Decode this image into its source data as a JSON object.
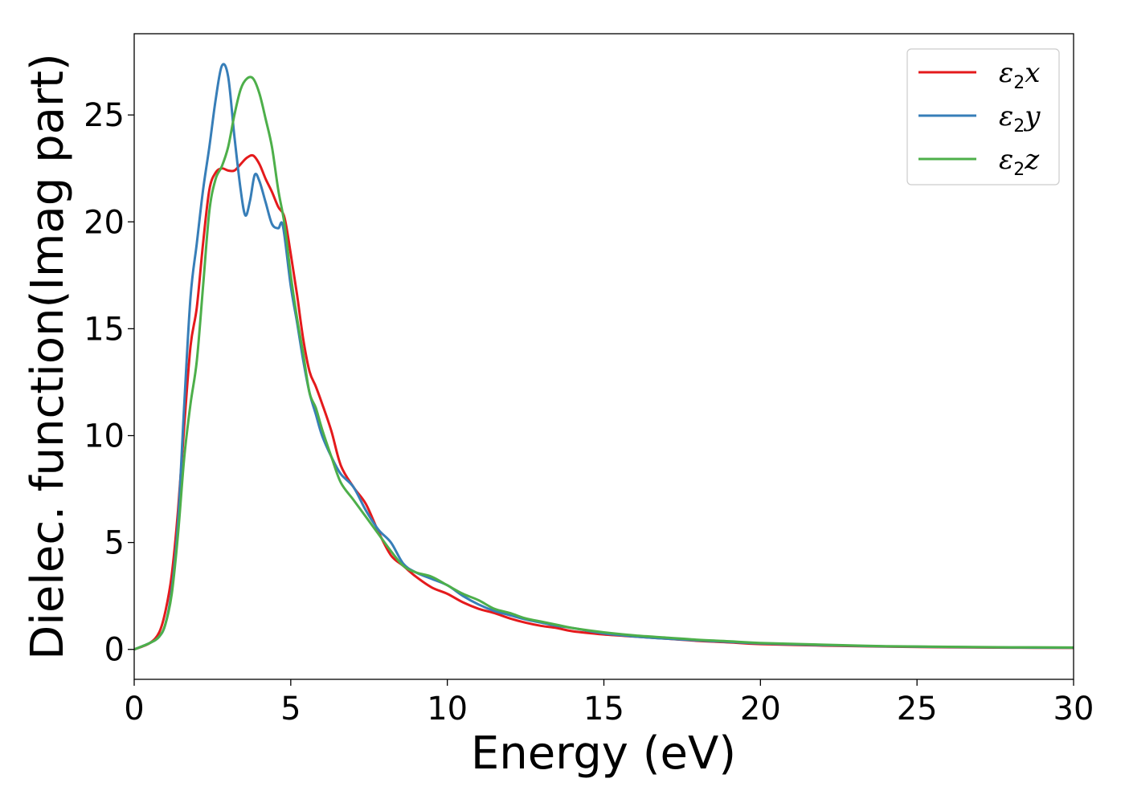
{
  "chart_data": {
    "type": "line",
    "xlabel": "Energy (eV)",
    "ylabel": "Dielec. function(Imag part)",
    "xlim": [
      0,
      30
    ],
    "ylim": [
      -1.4,
      28.8
    ],
    "xticks": [
      0,
      5,
      10,
      15,
      20,
      25,
      30
    ],
    "yticks": [
      0,
      5,
      10,
      15,
      20,
      25
    ],
    "grid": false,
    "legend_position": "top-right",
    "series": [
      {
        "name": "ε2x",
        "legend_main": "ε",
        "legend_sub": "2",
        "legend_tail": "x",
        "color": "#e41a1c",
        "x": [
          0,
          0.5,
          0.8,
          1.0,
          1.2,
          1.4,
          1.6,
          1.8,
          2.0,
          2.2,
          2.4,
          2.6,
          2.8,
          3.0,
          3.2,
          3.4,
          3.6,
          3.8,
          4.0,
          4.2,
          4.4,
          4.6,
          4.8,
          5.0,
          5.2,
          5.4,
          5.6,
          5.8,
          6.0,
          6.3,
          6.6,
          7.0,
          7.4,
          7.8,
          8.2,
          8.6,
          9.0,
          9.5,
          10.0,
          10.5,
          11.0,
          11.5,
          12.0,
          12.5,
          13.0,
          13.5,
          14.0,
          15.0,
          16.0,
          17.0,
          18.0,
          19.0,
          20.0,
          22.0,
          24.0,
          26.0,
          28.0,
          30.0
        ],
        "values": [
          0,
          0.3,
          0.8,
          1.8,
          3.5,
          6.5,
          10.5,
          14.2,
          16.0,
          19.0,
          21.5,
          22.3,
          22.5,
          22.4,
          22.4,
          22.7,
          23.0,
          23.1,
          22.7,
          22.0,
          21.4,
          20.7,
          20.2,
          18.5,
          16.6,
          14.5,
          13.0,
          12.3,
          11.5,
          10.2,
          8.6,
          7.6,
          6.8,
          5.5,
          4.4,
          3.9,
          3.4,
          2.9,
          2.6,
          2.2,
          1.9,
          1.7,
          1.45,
          1.25,
          1.1,
          1.0,
          0.85,
          0.7,
          0.6,
          0.5,
          0.4,
          0.33,
          0.25,
          0.18,
          0.13,
          0.1,
          0.08,
          0.07
        ]
      },
      {
        "name": "ε2y",
        "legend_main": "ε",
        "legend_sub": "2",
        "legend_tail": "y",
        "color": "#377eb8",
        "x": [
          0,
          0.5,
          0.8,
          1.0,
          1.2,
          1.4,
          1.6,
          1.8,
          2.0,
          2.2,
          2.4,
          2.6,
          2.8,
          3.0,
          3.2,
          3.4,
          3.55,
          3.7,
          3.85,
          4.0,
          4.2,
          4.4,
          4.6,
          4.75,
          5.0,
          5.2,
          5.4,
          5.6,
          5.8,
          6.0,
          6.3,
          6.6,
          7.0,
          7.4,
          7.8,
          8.2,
          8.6,
          9.0,
          9.5,
          10.0,
          10.5,
          11.0,
          11.5,
          12.0,
          12.5,
          13.0,
          13.5,
          14.0,
          15.0,
          16.0,
          17.0,
          18.0,
          19.0,
          20.0,
          22.0,
          24.0,
          26.0,
          28.0,
          30.0
        ],
        "values": [
          0,
          0.3,
          0.6,
          1.2,
          2.8,
          6.0,
          11.5,
          16.5,
          19.0,
          21.5,
          23.5,
          25.7,
          27.3,
          26.8,
          24.0,
          21.5,
          20.3,
          21.0,
          22.2,
          21.9,
          20.9,
          19.9,
          19.7,
          19.8,
          17.0,
          15.3,
          13.5,
          12.0,
          11.0,
          10.0,
          9.0,
          8.2,
          7.6,
          6.5,
          5.6,
          5.0,
          4.0,
          3.6,
          3.3,
          3.0,
          2.5,
          2.1,
          1.8,
          1.6,
          1.4,
          1.25,
          1.1,
          1.0,
          0.75,
          0.6,
          0.5,
          0.42,
          0.35,
          0.28,
          0.2,
          0.14,
          0.11,
          0.09,
          0.08
        ]
      },
      {
        "name": "ε2z",
        "legend_main": "ε",
        "legend_sub": "2",
        "legend_tail": "z",
        "color": "#4daf4a",
        "x": [
          0,
          0.5,
          0.8,
          1.0,
          1.2,
          1.4,
          1.6,
          1.8,
          2.0,
          2.2,
          2.4,
          2.6,
          2.8,
          3.0,
          3.2,
          3.4,
          3.6,
          3.8,
          4.0,
          4.2,
          4.4,
          4.6,
          4.8,
          5.0,
          5.2,
          5.4,
          5.6,
          5.8,
          6.0,
          6.3,
          6.6,
          7.0,
          7.4,
          7.8,
          8.2,
          8.6,
          9.0,
          9.5,
          10.0,
          10.5,
          11.0,
          11.5,
          12.0,
          12.5,
          13.0,
          13.5,
          14.0,
          15.0,
          16.0,
          17.0,
          18.0,
          19.0,
          20.0,
          22.0,
          24.0,
          26.0,
          28.0,
          30.0
        ],
        "values": [
          0,
          0.3,
          0.6,
          1.2,
          2.6,
          5.4,
          9.0,
          11.5,
          13.5,
          17.0,
          20.5,
          22.0,
          22.6,
          23.5,
          25.0,
          26.2,
          26.7,
          26.7,
          26.0,
          24.8,
          23.5,
          21.5,
          19.9,
          17.5,
          15.5,
          13.8,
          12.0,
          11.3,
          10.3,
          9.0,
          7.8,
          7.0,
          6.2,
          5.4,
          4.6,
          3.9,
          3.6,
          3.4,
          3.0,
          2.6,
          2.3,
          1.9,
          1.7,
          1.45,
          1.3,
          1.15,
          1.0,
          0.8,
          0.65,
          0.55,
          0.45,
          0.38,
          0.3,
          0.22,
          0.15,
          0.12,
          0.1,
          0.09
        ]
      }
    ]
  }
}
